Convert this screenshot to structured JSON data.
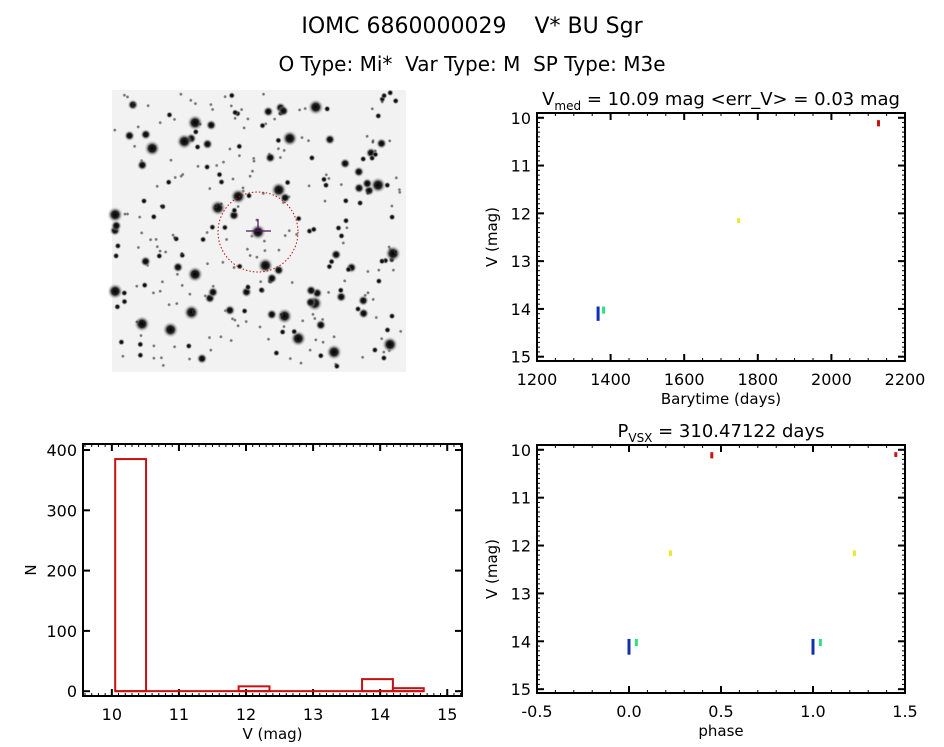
{
  "header": {
    "object_id": "IOMC 6860000029",
    "object_name": "V* BU Sgr",
    "o_type": "O Type: Mi*",
    "var_type": "Var Type: M",
    "sp_type": "SP Type: M3e"
  },
  "image": {
    "description_colors": {
      "background": "#f2f2f2",
      "circle": "#c01010",
      "crosshair": "#501060"
    }
  },
  "chart_data": [
    {
      "type": "scatter",
      "title": {
        "main": "V",
        "sub": "med",
        "rest": " = 10.09 mag <err_V> = 0.03 mag"
      },
      "xlabel": "Barytime (days)",
      "ylabel": "V (mag)",
      "xlim": [
        1200,
        2200
      ],
      "ylim": [
        15.09,
        9.9
      ],
      "y_inverted": true,
      "xticks": [
        1200,
        1400,
        1600,
        1800,
        2000,
        2200
      ],
      "xminor": 50,
      "yticks": [
        10,
        11,
        12,
        13,
        14,
        15
      ],
      "yminor": 0.1,
      "grid": false,
      "series": [
        {
          "color": "#1030b0",
          "points": [
            {
              "x": 1366,
              "v_top": 13.95,
              "v_bottom": 14.25
            }
          ]
        },
        {
          "color": "#30e080",
          "points": [
            {
              "x": 1381,
              "v_top": 13.95,
              "v_bottom": 14.1
            }
          ]
        },
        {
          "color": "#e8e830",
          "points": [
            {
              "x": 1748,
              "v_top": 12.1,
              "v_bottom": 12.2
            }
          ]
        },
        {
          "color": "#d01010",
          "points": [
            {
              "x": 2128,
              "v_top": 10.05,
              "v_bottom": 10.18
            }
          ]
        }
      ]
    },
    {
      "type": "bar",
      "title": "",
      "xlabel": "V (mag)",
      "ylabel": "N",
      "xlim": [
        9.57,
        15.22
      ],
      "ylim": [
        -8,
        410
      ],
      "xticks": [
        10,
        11,
        12,
        13,
        14,
        15
      ],
      "xminor": 0.1,
      "yticks": [
        0,
        100,
        200,
        300,
        400
      ],
      "yminor": 100,
      "grid": false,
      "color": "#c81010",
      "bin_edges": [
        10.05,
        10.51,
        10.97,
        11.43,
        11.89,
        12.35,
        12.81,
        13.27,
        13.73,
        14.19,
        14.65
      ],
      "counts": [
        385,
        0,
        0,
        0,
        8,
        0,
        0,
        0,
        20,
        5
      ]
    },
    {
      "type": "scatter",
      "title": {
        "main": "P",
        "sub": "VSX",
        "rest": " = 310.47122 days"
      },
      "xlabel": "phase",
      "ylabel": "V (mag)",
      "xlim": [
        -0.5,
        1.5
      ],
      "ylim": [
        15.08,
        9.9
      ],
      "y_inverted": true,
      "xticks": [
        -0.5,
        0.0,
        0.5,
        1.0,
        1.5
      ],
      "xtick_labels": [
        "-0.5",
        "0.0",
        "0.5",
        "1.0",
        "1.5"
      ],
      "xminor": 0.1,
      "yticks": [
        10,
        11,
        12,
        13,
        14,
        15
      ],
      "yminor": 0.1,
      "grid": false,
      "series": [
        {
          "color": "#1030b0",
          "points": [
            {
              "x": 0.0,
              "v_top": 13.95,
              "v_bottom": 14.28
            },
            {
              "x": 1.0,
              "v_top": 13.95,
              "v_bottom": 14.28
            }
          ]
        },
        {
          "color": "#30e080",
          "points": [
            {
              "x": 0.04,
              "v_top": 13.95,
              "v_bottom": 14.1
            },
            {
              "x": 1.04,
              "v_top": 13.95,
              "v_bottom": 14.1
            }
          ]
        },
        {
          "color": "#e8e830",
          "points": [
            {
              "x": 0.225,
              "v_top": 12.1,
              "v_bottom": 12.22
            },
            {
              "x": 1.225,
              "v_top": 12.1,
              "v_bottom": 12.22
            }
          ]
        },
        {
          "color": "#d01010",
          "points": [
            {
              "x": 0.45,
              "v_top": 10.05,
              "v_bottom": 10.18
            },
            {
              "x": 1.45,
              "v_top": 10.05,
              "v_bottom": 10.15
            }
          ]
        }
      ]
    }
  ]
}
